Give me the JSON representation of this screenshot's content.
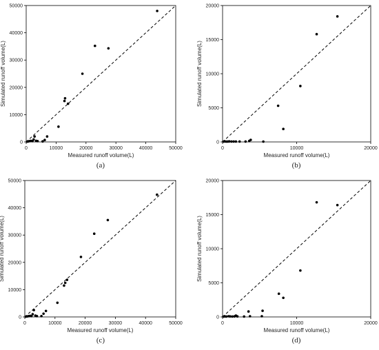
{
  "chart_data": [
    {
      "type": "scatter",
      "panel_label": "(a)",
      "xlabel": "Measured runoff volume(L)",
      "ylabel": "Simulated runoff volume(L)",
      "xlim": [
        0,
        50000
      ],
      "ylim": [
        0,
        50000
      ],
      "xticks": [
        "0",
        "10000",
        "20000",
        "30000",
        "40000",
        "50000"
      ],
      "yticks": [
        "0",
        "10000",
        "20000",
        "30000",
        "40000",
        "50000"
      ],
      "reference_line": "1:1 dashed",
      "grid": false,
      "points": [
        {
          "x": 300,
          "y": 100
        },
        {
          "x": 700,
          "y": 200
        },
        {
          "x": 1200,
          "y": 300
        },
        {
          "x": 1600,
          "y": 400
        },
        {
          "x": 2100,
          "y": 300
        },
        {
          "x": 2500,
          "y": 900
        },
        {
          "x": 2800,
          "y": 2000
        },
        {
          "x": 3300,
          "y": 400
        },
        {
          "x": 3800,
          "y": 300
        },
        {
          "x": 5500,
          "y": 200
        },
        {
          "x": 6200,
          "y": 700
        },
        {
          "x": 7000,
          "y": 2000
        },
        {
          "x": 10800,
          "y": 5600
        },
        {
          "x": 12800,
          "y": 15000
        },
        {
          "x": 13000,
          "y": 16000
        },
        {
          "x": 14000,
          "y": 14000
        },
        {
          "x": 18800,
          "y": 25000
        },
        {
          "x": 23000,
          "y": 35200
        },
        {
          "x": 27500,
          "y": 34300
        },
        {
          "x": 43800,
          "y": 48000
        }
      ]
    },
    {
      "type": "scatter",
      "panel_label": "(b)",
      "xlabel": "Measured runoff volume(L)",
      "ylabel": "Simulated runoff volume(L)",
      "xlim": [
        0,
        20000
      ],
      "ylim": [
        0,
        20000
      ],
      "xticks": [
        "0",
        "10000",
        "20000"
      ],
      "yticks": [
        "0",
        "5000",
        "10000",
        "15000",
        "20000"
      ],
      "reference_line": "1:1 dashed",
      "grid": false,
      "points": [
        {
          "x": 100,
          "y": 50
        },
        {
          "x": 300,
          "y": 80
        },
        {
          "x": 500,
          "y": 50
        },
        {
          "x": 700,
          "y": 60
        },
        {
          "x": 900,
          "y": 80
        },
        {
          "x": 1200,
          "y": 60
        },
        {
          "x": 1500,
          "y": 60
        },
        {
          "x": 1800,
          "y": 60
        },
        {
          "x": 2300,
          "y": 60
        },
        {
          "x": 3100,
          "y": 60
        },
        {
          "x": 3600,
          "y": 150
        },
        {
          "x": 3800,
          "y": 300
        },
        {
          "x": 5500,
          "y": 50
        },
        {
          "x": 7500,
          "y": 5300
        },
        {
          "x": 8200,
          "y": 1900
        },
        {
          "x": 10500,
          "y": 8200
        },
        {
          "x": 12700,
          "y": 15800
        },
        {
          "x": 15500,
          "y": 18400
        }
      ]
    },
    {
      "type": "scatter",
      "panel_label": "(c)",
      "xlabel": "Measured runoff volume(L)",
      "ylabel": "Simulated runoff volume(L)",
      "xlim": [
        0,
        50000
      ],
      "ylim": [
        0,
        50000
      ],
      "xticks": [
        "0",
        "10000",
        "20000",
        "30000",
        "40000",
        "50000"
      ],
      "yticks": [
        "0",
        "10000",
        "20000",
        "30000",
        "40000",
        "50000"
      ],
      "reference_line": "1:1 dashed",
      "grid": false,
      "points": [
        {
          "x": 300,
          "y": 100
        },
        {
          "x": 800,
          "y": 200
        },
        {
          "x": 1300,
          "y": 300
        },
        {
          "x": 1800,
          "y": 400
        },
        {
          "x": 2200,
          "y": 300
        },
        {
          "x": 2600,
          "y": 1000
        },
        {
          "x": 3000,
          "y": 2500
        },
        {
          "x": 3500,
          "y": 500
        },
        {
          "x": 4000,
          "y": 300
        },
        {
          "x": 5500,
          "y": 300
        },
        {
          "x": 6200,
          "y": 1200
        },
        {
          "x": 7000,
          "y": 2200
        },
        {
          "x": 10800,
          "y": 5200
        },
        {
          "x": 13000,
          "y": 11500
        },
        {
          "x": 13400,
          "y": 12500
        },
        {
          "x": 14000,
          "y": 13600
        },
        {
          "x": 18600,
          "y": 22000
        },
        {
          "x": 23000,
          "y": 30500
        },
        {
          "x": 27500,
          "y": 35500
        },
        {
          "x": 43800,
          "y": 44800
        }
      ]
    },
    {
      "type": "scatter",
      "panel_label": "(d)",
      "xlabel": "Measured runoff volume(L)",
      "ylabel": "Simulated runoff volume(L)",
      "xlim": [
        0,
        20000
      ],
      "ylim": [
        0,
        20000
      ],
      "xticks": [
        "0",
        "10000",
        "20000"
      ],
      "yticks": [
        "0",
        "5000",
        "10000",
        "15000",
        "20000"
      ],
      "reference_line": "1:1 dashed",
      "grid": false,
      "points": [
        {
          "x": 100,
          "y": 50
        },
        {
          "x": 300,
          "y": 80
        },
        {
          "x": 500,
          "y": 60
        },
        {
          "x": 800,
          "y": 100
        },
        {
          "x": 1000,
          "y": 80
        },
        {
          "x": 1300,
          "y": 60
        },
        {
          "x": 1600,
          "y": 80
        },
        {
          "x": 1800,
          "y": 200
        },
        {
          "x": 2000,
          "y": 80
        },
        {
          "x": 2900,
          "y": 60
        },
        {
          "x": 3500,
          "y": 800
        },
        {
          "x": 3700,
          "y": 100
        },
        {
          "x": 5300,
          "y": 100
        },
        {
          "x": 5400,
          "y": 900
        },
        {
          "x": 7600,
          "y": 3400
        },
        {
          "x": 8200,
          "y": 2800
        },
        {
          "x": 10500,
          "y": 6800
        },
        {
          "x": 12700,
          "y": 16800
        },
        {
          "x": 15500,
          "y": 16400
        }
      ]
    }
  ]
}
